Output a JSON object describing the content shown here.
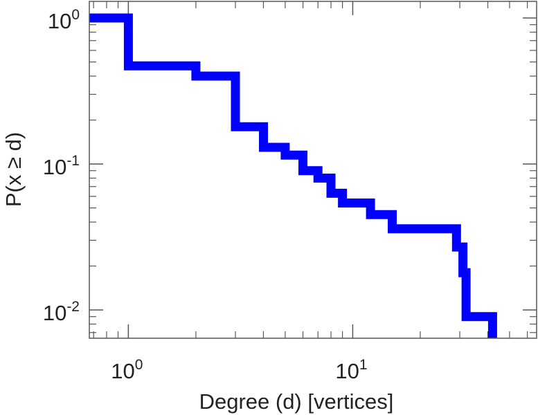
{
  "chart_data": {
    "type": "line",
    "step": true,
    "xscale": "log",
    "yscale": "log",
    "xlim": [
      0.67,
      66
    ],
    "ylim": [
      0.0064,
      1.3
    ],
    "xlabel": "Degree (d) [vertices]",
    "ylabel": "P(x ≥ d)",
    "x_ticks": [
      {
        "value": 1,
        "base": "10",
        "exp": "0"
      },
      {
        "value": 10,
        "base": "10",
        "exp": "1"
      }
    ],
    "y_ticks": [
      {
        "value": 1,
        "base": "10",
        "exp": "0"
      },
      {
        "value": 0.1,
        "base": "10",
        "exp": "-1"
      },
      {
        "value": 0.01,
        "base": "10",
        "exp": "-2"
      }
    ],
    "grid": false,
    "series": [
      {
        "color": "#0000ff",
        "points": [
          [
            0.67,
            1.0
          ],
          [
            1,
            1.0
          ],
          [
            1,
            0.47
          ],
          [
            2,
            0.47
          ],
          [
            2,
            0.4
          ],
          [
            3,
            0.4
          ],
          [
            3,
            0.18
          ],
          [
            4,
            0.18
          ],
          [
            4,
            0.13
          ],
          [
            5,
            0.13
          ],
          [
            5,
            0.115
          ],
          [
            6,
            0.115
          ],
          [
            6,
            0.09
          ],
          [
            7,
            0.09
          ],
          [
            7,
            0.08
          ],
          [
            8,
            0.08
          ],
          [
            8,
            0.063
          ],
          [
            9,
            0.063
          ],
          [
            9,
            0.054
          ],
          [
            12,
            0.054
          ],
          [
            12,
            0.045
          ],
          [
            15,
            0.045
          ],
          [
            15,
            0.036
          ],
          [
            29,
            0.036
          ],
          [
            29,
            0.027
          ],
          [
            31,
            0.027
          ],
          [
            31,
            0.018
          ],
          [
            32,
            0.018
          ],
          [
            32,
            0.009
          ],
          [
            42,
            0.009
          ],
          [
            42,
            0.0064
          ]
        ]
      }
    ]
  }
}
